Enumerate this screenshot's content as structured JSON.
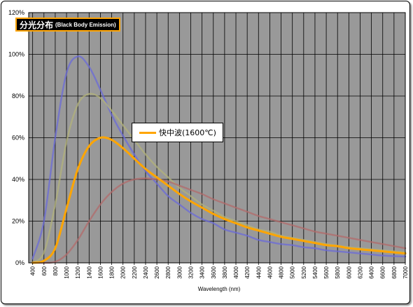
{
  "title": {
    "main": "分光分布",
    "sub": "(Black Body Emission)"
  },
  "colors": {
    "plot_background": "#999999",
    "grid": "#000000",
    "title_background": "#000000",
    "title_border": "#ffa500",
    "title_text": "#ffffff"
  },
  "chart_data": {
    "type": "line",
    "xlabel": "Wavelength (nm)",
    "ylabel": "",
    "x_ticks": [
      "400",
      "600",
      "800",
      "1000",
      "1200",
      "1400",
      "1600",
      "1800",
      "2000",
      "2200",
      "2400",
      "2600",
      "2800",
      "3000",
      "3200",
      "3400",
      "3600",
      "3800",
      "4000",
      "4200",
      "4400",
      "4600",
      "4800",
      "5000",
      "5200",
      "5400",
      "5600",
      "5800",
      "6000",
      "6200",
      "6400",
      "6600",
      "6800",
      "7000"
    ],
    "y_ticks": [
      "0%",
      "20%",
      "40%",
      "60%",
      "80%",
      "100%",
      "120%"
    ],
    "ylim": [
      0,
      120
    ],
    "grid": true,
    "legend_position": "center-left",
    "series": [
      {
        "name": "",
        "color": "#6b6bd9",
        "highlighted": false,
        "values": [
          2,
          20,
          60,
          91,
          99,
          94,
          83,
          71,
          61,
          52,
          44,
          38,
          32,
          28,
          24,
          21,
          19,
          16,
          14.5,
          13,
          11,
          10,
          9,
          8.5,
          7.5,
          7,
          6,
          5.5,
          5,
          4.5,
          4,
          3.5,
          3.2,
          3
        ]
      },
      {
        "name": "",
        "color": "#b3b37a",
        "highlighted": false,
        "values": [
          0,
          5,
          28,
          58,
          76,
          81,
          79,
          73,
          66,
          59,
          52,
          46,
          41,
          36,
          32,
          28,
          25,
          22,
          20,
          18,
          16,
          15,
          13,
          12,
          11,
          10,
          9,
          8.2,
          7.5,
          7,
          6.5,
          6,
          5.5,
          5
        ]
      },
      {
        "name": "快中波(1600℃)",
        "color": "#ffa500",
        "highlighted": true,
        "values": [
          0,
          1,
          7,
          26,
          45,
          56,
          60,
          59,
          55,
          50,
          45,
          41,
          37,
          33,
          29.5,
          26.5,
          23.5,
          21,
          19,
          17,
          15.5,
          14,
          12.5,
          11.5,
          10.5,
          9.5,
          8.5,
          8,
          7,
          6.5,
          6,
          5.5,
          5,
          4.5
        ]
      },
      {
        "name": "",
        "color": "#b36b6b",
        "highlighted": false,
        "values": [
          0,
          0,
          0.5,
          4,
          11,
          20,
          28,
          34,
          38,
          40,
          40.5,
          40,
          39,
          37,
          35,
          33,
          30.5,
          28.5,
          26.5,
          24.5,
          22.5,
          21,
          19.5,
          18,
          16.5,
          15,
          14,
          13,
          12,
          11,
          10,
          9,
          8,
          7
        ]
      }
    ]
  }
}
